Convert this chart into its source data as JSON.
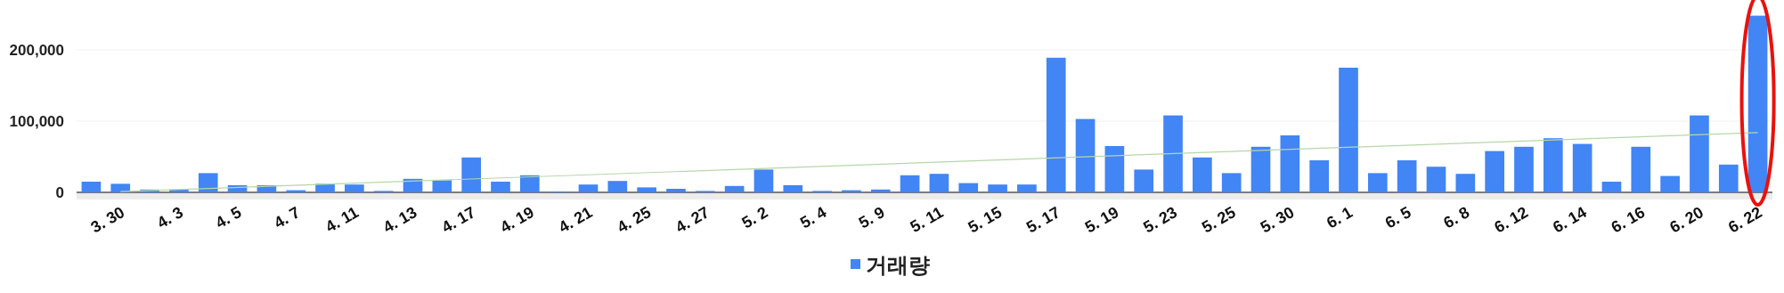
{
  "chart_data": {
    "type": "bar",
    "categories": [
      null,
      "3. 30",
      null,
      "4. 3",
      null,
      "4. 5",
      null,
      "4. 7",
      null,
      "4. 11",
      null,
      "4. 13",
      null,
      "4. 17",
      null,
      "4. 19",
      null,
      "4. 21",
      null,
      "4. 25",
      null,
      "4. 27",
      null,
      "5. 2",
      null,
      "5. 4",
      null,
      "5. 9",
      null,
      "5. 11",
      null,
      "5. 15",
      null,
      "5. 17",
      null,
      "5. 19",
      null,
      "5. 23",
      null,
      "5. 25",
      null,
      "5. 30",
      null,
      "6. 1",
      null,
      "6. 5",
      null,
      "6. 8",
      null,
      "6. 12",
      null,
      "6. 14",
      null,
      "6. 16",
      null,
      "6. 20",
      null,
      "6. 22"
    ],
    "series": [
      {
        "name": "거래량",
        "color": "#4285f4",
        "values": [
          15000,
          12000,
          4000,
          4000,
          27000,
          10000,
          10000,
          3000,
          12000,
          11000,
          2000,
          19000,
          17000,
          49000,
          15000,
          24000,
          1000,
          11000,
          16000,
          7000,
          5000,
          2000,
          9000,
          32000,
          10000,
          2000,
          3000,
          4000,
          24000,
          26000,
          13000,
          11000,
          11000,
          189000,
          103000,
          65000,
          32000,
          108000,
          49000,
          27000,
          64000,
          80000,
          45000,
          175000,
          27000,
          45000,
          36000,
          26000,
          58000,
          64000,
          76000,
          68000,
          15000,
          64000,
          23000,
          108000,
          39000,
          248000
        ]
      },
      {
        "type": "line",
        "color": "#b7d7a8",
        "x": [
          "3. 30",
          "6. 22"
        ],
        "values": [
          1000,
          84000
        ]
      }
    ],
    "ylim": [
      0,
      250000
    ],
    "yticks": [
      {
        "value": 0,
        "label": "0"
      },
      {
        "value": 100000,
        "label": "100,000"
      },
      {
        "value": 200000,
        "label": "200,000"
      }
    ],
    "grid": "y",
    "legend": "bottom"
  }
}
